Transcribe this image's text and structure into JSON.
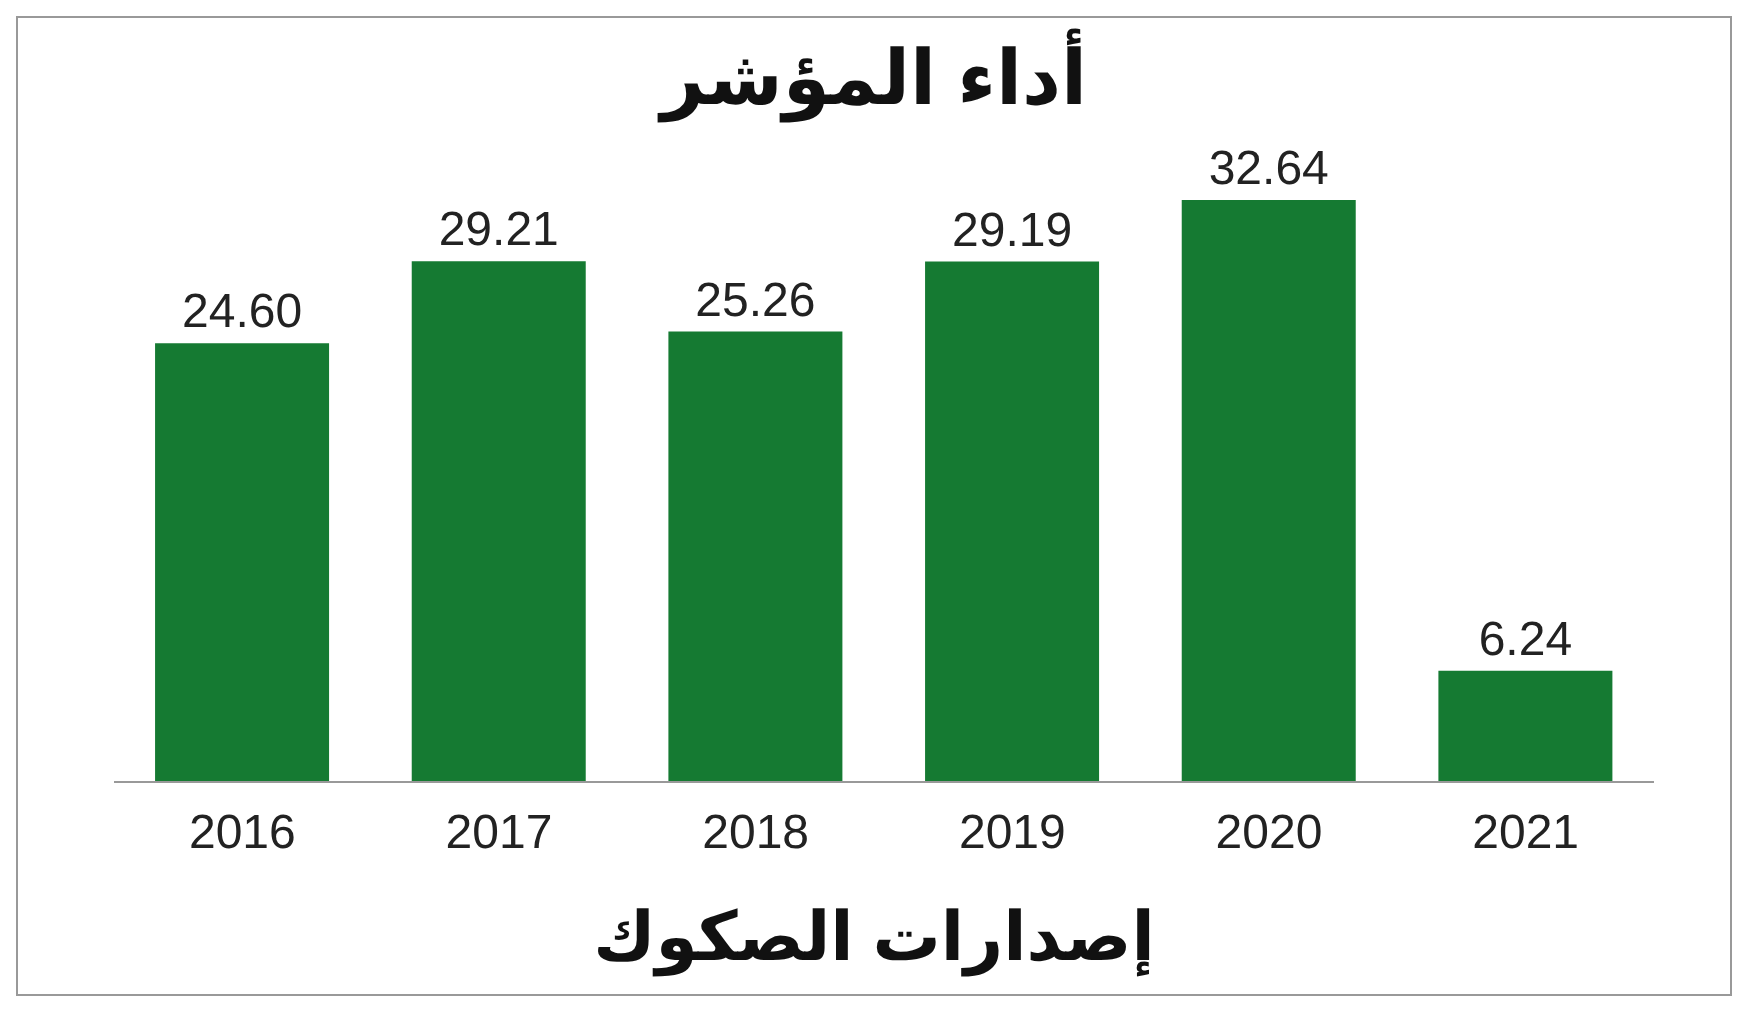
{
  "chart_data": {
    "type": "bar",
    "title": "أداء المؤشر",
    "xlabel": "إصدارات الصكوك",
    "categories": [
      "2016",
      "2017",
      "2018",
      "2019",
      "2020",
      "2021"
    ],
    "values": [
      24.6,
      29.21,
      25.26,
      29.19,
      32.64,
      6.24
    ],
    "value_labels": [
      "24.60",
      "29.21",
      "25.26",
      "29.19",
      "32.64",
      "6.24"
    ],
    "color": "#157a32"
  }
}
